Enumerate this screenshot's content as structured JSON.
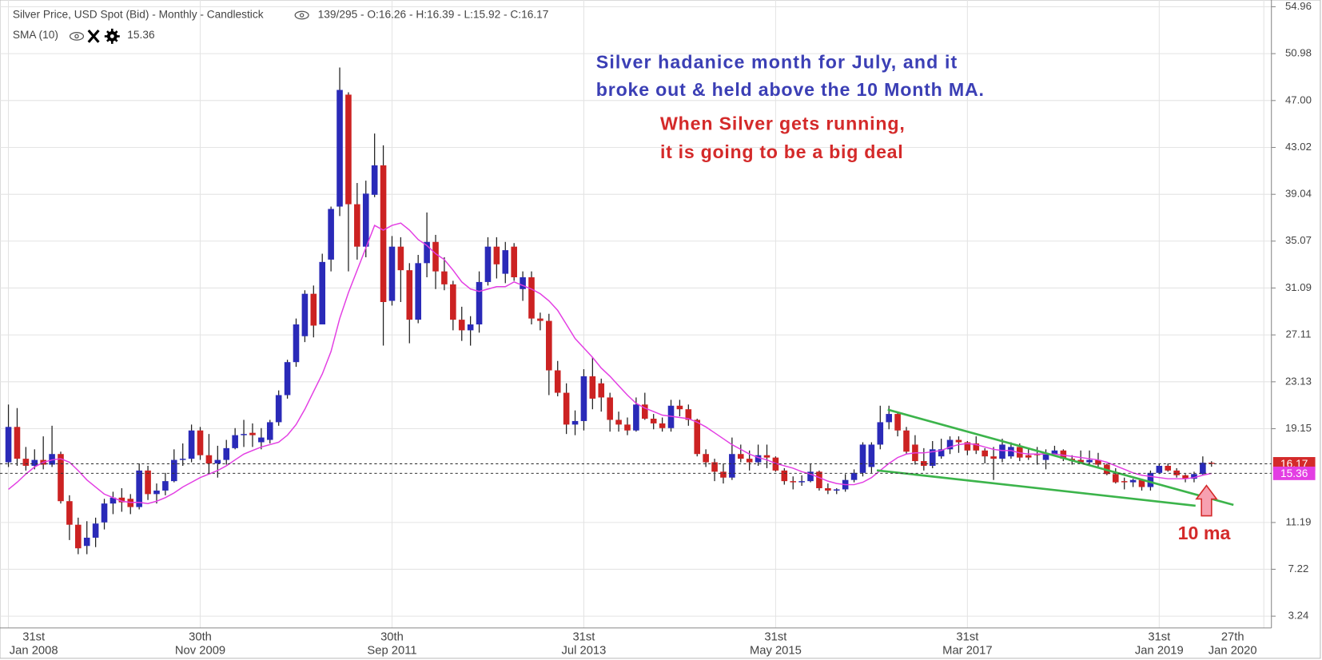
{
  "chart_data": {
    "type": "candlestick",
    "title": "Silver Price, USD Spot (Bid) - Monthly - Candlestick",
    "info": "139/295 - O:16.26 - H:16.39 - L:15.92 - C:16.17",
    "up_color": "#2a2ab8",
    "down_color": "#cc2222",
    "open": [
      16.3,
      19.3,
      16.6,
      16.0,
      16.5,
      16.1,
      17.0,
      13.0,
      11.0,
      9.2,
      9.9,
      11.2,
      12.8,
      13.3,
      13.2,
      12.5,
      15.6,
      13.6,
      13.9,
      14.7,
      16.5,
      16.6,
      19.0,
      16.9,
      16.2,
      16.5,
      17.5,
      18.6,
      18.8,
      18.0,
      18.2,
      19.7,
      22.0,
      24.8,
      27.0,
      30.6,
      28.0,
      33.5,
      38.0,
      47.5,
      38.2,
      34.6,
      39.0,
      41.5,
      30.0,
      34.6,
      32.6,
      28.4,
      33.2,
      35.0,
      32.5,
      31.4,
      28.4,
      27.5,
      28.0,
      31.6,
      34.6,
      32.3,
      34.6,
      31.0,
      32.0,
      28.5,
      28.3,
      24.1,
      22.2,
      19.5,
      19.8,
      23.6,
      23.0,
      21.8,
      19.9,
      19.5,
      19.0,
      21.2,
      20.0,
      19.6,
      19.2,
      21.1,
      20.8,
      19.9,
      17.0,
      16.3,
      15.5,
      15.0,
      17.0,
      16.6,
      16.3,
      16.9,
      16.7,
      15.6,
      14.7,
      14.6,
      14.7,
      15.5,
      14.1,
      13.9,
      14.0,
      14.8,
      15.4,
      15.9,
      17.8,
      19.7,
      20.4,
      19.0,
      17.8,
      16.4,
      16.0,
      16.8,
      17.4,
      18.2,
      18.0,
      17.9,
      17.3,
      16.8,
      16.6,
      16.8,
      17.6,
      16.9,
      17.0,
      16.5,
      17.0,
      17.3,
      16.6,
      16.5,
      16.3,
      16.5,
      16.1,
      15.3,
      14.7,
      14.6,
      14.8,
      14.2,
      15.4,
      16.0,
      15.6,
      15.2,
      14.9,
      15.3,
      16.26
    ],
    "high": [
      21.2,
      20.9,
      17.6,
      17.4,
      18.5,
      19.4,
      17.2,
      13.5,
      11.6,
      11.3,
      11.6,
      13.2,
      13.8,
      14.1,
      13.6,
      16.2,
      16.0,
      14.5,
      15.4,
      17.4,
      17.9,
      19.5,
      19.3,
      18.7,
      17.7,
      18.2,
      19.2,
      19.9,
      19.6,
      19.2,
      19.9,
      22.4,
      25.0,
      28.5,
      30.9,
      31.3,
      34.0,
      38.0,
      49.8,
      47.7,
      40.0,
      40.2,
      44.2,
      43.2,
      35.5,
      35.4,
      33.2,
      33.9,
      37.5,
      35.6,
      33.7,
      31.7,
      29.5,
      28.7,
      32.5,
      35.4,
      35.4,
      35.0,
      34.9,
      32.5,
      32.5,
      29.0,
      28.9,
      24.9,
      23.0,
      20.7,
      24.2,
      25.2,
      23.4,
      22.2,
      20.6,
      20.1,
      21.8,
      22.2,
      20.4,
      20.1,
      21.6,
      21.6,
      21.2,
      20.0,
      17.4,
      16.6,
      16.2,
      18.4,
      17.8,
      17.3,
      17.8,
      17.8,
      16.8,
      15.8,
      15.1,
      15.2,
      16.2,
      15.6,
      14.5,
      14.1,
      15.3,
      15.7,
      18.0,
      18.0,
      21.1,
      21.1,
      20.6,
      19.3,
      18.6,
      17.5,
      18.1,
      18.3,
      18.5,
      18.5,
      18.1,
      18.5,
      17.5,
      17.6,
      18.3,
      18.0,
      17.9,
      17.5,
      17.6,
      17.4,
      17.7,
      17.4,
      16.9,
      17.3,
      17.3,
      17.1,
      16.2,
      15.8,
      15.0,
      14.9,
      14.9,
      15.6,
      16.2,
      16.2,
      15.8,
      15.3,
      15.5,
      16.8,
      16.39
    ],
    "low": [
      15.9,
      16.0,
      15.6,
      15.7,
      15.7,
      15.9,
      12.8,
      9.7,
      8.5,
      8.5,
      9.1,
      10.6,
      11.9,
      12.1,
      11.9,
      12.3,
      13.1,
      12.8,
      13.5,
      14.6,
      16.0,
      16.3,
      16.5,
      15.3,
      15.0,
      16.1,
      17.4,
      17.6,
      17.6,
      17.4,
      17.9,
      19.4,
      21.7,
      24.4,
      26.5,
      26.9,
      28.0,
      32.5,
      37.2,
      32.5,
      33.5,
      33.7,
      38.8,
      26.2,
      29.6,
      29.9,
      26.4,
      28.1,
      32.0,
      31.0,
      30.9,
      27.5,
      26.6,
      26.2,
      27.3,
      31.3,
      31.9,
      31.5,
      31.7,
      30.0,
      28.0,
      27.5,
      22.0,
      21.9,
      18.7,
      18.6,
      19.0,
      20.8,
      20.6,
      18.9,
      18.9,
      18.6,
      18.9,
      19.9,
      19.1,
      18.9,
      18.9,
      20.2,
      19.4,
      16.8,
      15.9,
      14.7,
      14.5,
      14.8,
      16.3,
      15.6,
      16.0,
      15.8,
      15.5,
      14.4,
      14.0,
      14.3,
      14.6,
      13.9,
      13.6,
      13.6,
      13.8,
      14.6,
      15.1,
      15.4,
      17.4,
      19.1,
      18.5,
      17.0,
      16.1,
      15.6,
      15.8,
      16.6,
      17.0,
      17.1,
      16.9,
      17.0,
      16.2,
      14.8,
      16.3,
      16.6,
      16.4,
      16.5,
      16.1,
      15.7,
      16.8,
      16.4,
      16.1,
      16.2,
      16.1,
      15.9,
      15.2,
      14.5,
      14.0,
      14.2,
      13.9,
      13.9,
      15.3,
      15.5,
      15.0,
      14.6,
      14.6,
      15.2,
      15.92
    ],
    "close": [
      19.3,
      16.6,
      16.0,
      16.5,
      16.1,
      17.0,
      13.0,
      11.0,
      9.0,
      9.9,
      11.1,
      12.8,
      13.3,
      12.9,
      12.5,
      15.6,
      13.6,
      13.9,
      14.7,
      16.5,
      16.6,
      19.0,
      16.9,
      16.2,
      16.5,
      17.5,
      18.6,
      18.7,
      18.6,
      18.4,
      19.7,
      22.0,
      24.8,
      28.0,
      30.6,
      27.9,
      33.3,
      37.8,
      47.9,
      38.2,
      34.6,
      39.1,
      41.5,
      29.9,
      34.6,
      32.6,
      28.4,
      33.2,
      35.0,
      32.5,
      31.4,
      28.4,
      27.5,
      28.0,
      31.6,
      34.6,
      33.1,
      34.3,
      32.0,
      32.0,
      28.5,
      28.3,
      24.1,
      22.2,
      19.5,
      19.8,
      23.6,
      21.7,
      21.8,
      19.9,
      19.5,
      19.0,
      21.2,
      20.0,
      19.6,
      19.2,
      21.1,
      20.8,
      19.9,
      17.0,
      16.3,
      15.5,
      15.0,
      17.0,
      16.6,
      16.3,
      16.9,
      16.7,
      15.6,
      14.7,
      14.6,
      14.7,
      15.5,
      14.1,
      13.9,
      14.0,
      14.8,
      15.4,
      17.8,
      17.8,
      19.7,
      20.4,
      19.0,
      17.2,
      16.4,
      16.0,
      17.4,
      17.4,
      18.2,
      18.0,
      17.3,
      17.3,
      16.8,
      16.6,
      17.8,
      17.6,
      16.7,
      16.7,
      16.9,
      17.0,
      17.3,
      16.6,
      16.4,
      16.3,
      16.5,
      16.1,
      15.3,
      14.6,
      14.6,
      14.8,
      14.2,
      15.4,
      16.0,
      15.6,
      15.2,
      14.9,
      15.3,
      16.26,
      16.17
    ],
    "sma": {
      "name": "SMA (10)",
      "color": "#e33ee3",
      "values": [
        14.0,
        14.6,
        15.3,
        15.9,
        16.3,
        16.5,
        16.6,
        16.3,
        15.6,
        14.8,
        14.2,
        13.6,
        13.3,
        13.0,
        12.9,
        12.9,
        12.8,
        13.0,
        13.3,
        13.7,
        14.2,
        14.6,
        15.0,
        15.3,
        15.6,
        16.0,
        16.5,
        17.0,
        17.3,
        17.6,
        17.8,
        18.0,
        18.6,
        19.5,
        20.8,
        22.3,
        23.8,
        25.7,
        28.5,
        30.7,
        32.6,
        34.5,
        36.4,
        36.0,
        36.4,
        36.6,
        36.0,
        35.2,
        34.7,
        34.0,
        33.5,
        32.6,
        31.6,
        31.0,
        30.8,
        31.0,
        31.2,
        31.2,
        31.6,
        31.3,
        31.0,
        30.6,
        30.0,
        29.2,
        28.0,
        26.8,
        26.0,
        25.2,
        24.3,
        23.6,
        22.8,
        22.0,
        21.3,
        20.9,
        20.6,
        20.3,
        20.2,
        20.1,
        20.0,
        19.7,
        19.3,
        18.8,
        18.3,
        17.8,
        17.4,
        17.0,
        16.7,
        16.5,
        16.2,
        16.0,
        15.8,
        15.5,
        15.3,
        15.0,
        14.7,
        14.5,
        14.4,
        14.4,
        14.6,
        15.0,
        15.6,
        16.2,
        16.7,
        17.0,
        17.1,
        17.1,
        17.2,
        17.3,
        17.6,
        17.8,
        17.9,
        17.8,
        17.6,
        17.4,
        17.3,
        17.3,
        17.1,
        17.0,
        17.0,
        17.0,
        17.0,
        16.9,
        16.8,
        16.7,
        16.6,
        16.5,
        16.3,
        16.0,
        15.7,
        15.4,
        15.2,
        15.1,
        15.0,
        14.9,
        14.9,
        14.9,
        15.0,
        15.2,
        15.36
      ]
    },
    "xlim": [
      -0.967,
      144.87
    ],
    "xticks": [
      {
        "value": 0,
        "label": "31st\nJan 2008"
      },
      {
        "value": 22,
        "label": "30th\nNov 2009"
      },
      {
        "value": 44,
        "label": "30th\nSep 2011"
      },
      {
        "value": 66,
        "label": "31st\nJul 2013"
      },
      {
        "value": 88,
        "label": "31st\nMay 2015"
      },
      {
        "value": 110,
        "label": "31st\nMar 2017"
      },
      {
        "value": 132,
        "label": "31st\nJan 2019"
      },
      {
        "value": 144,
        "label": "27th\nJan 2020"
      }
    ],
    "ylim": [
      2.24,
      55.53
    ],
    "yticks": [
      3.24,
      7.22,
      11.19,
      19.15,
      23.13,
      27.11,
      31.09,
      35.07,
      39.04,
      43.02,
      {
        "value": 47,
        "label": "47.00"
      },
      50.98,
      54.96
    ],
    "grid": true,
    "annotations": {
      "blue": [
        "Silver hadanice month for July, and it",
        "broke out & held above the 10 Month MA."
      ],
      "red": [
        "When Silver gets running,",
        "it is going to be a big deal"
      ],
      "arrow_label": "10 ma"
    }
  }
}
